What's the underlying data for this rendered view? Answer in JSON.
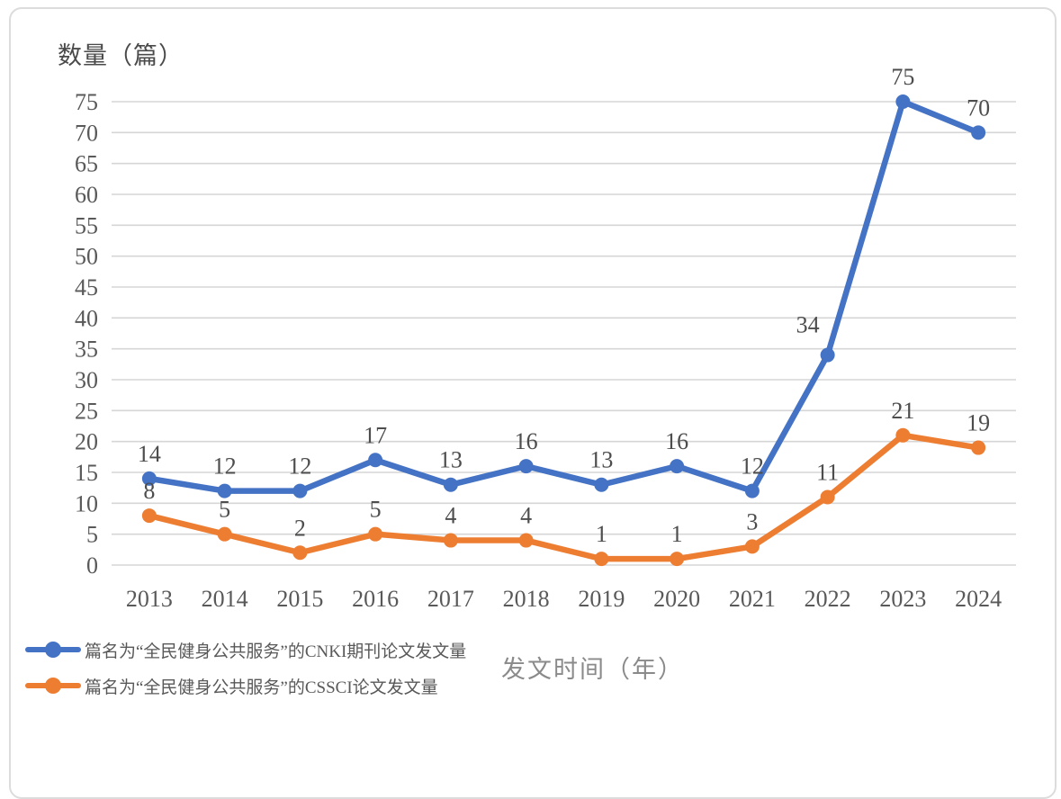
{
  "chart_data": {
    "type": "line",
    "title_y": "数量（篇）",
    "title_x": "发文时间（年）",
    "categories": [
      "2013",
      "2014",
      "2015",
      "2016",
      "2017",
      "2018",
      "2019",
      "2020",
      "2021",
      "2022",
      "2023",
      "2024"
    ],
    "series": [
      {
        "name": "篇名为“全民健身公共服务”的CNKI期刊论文发文量",
        "color": "#4472C4",
        "values": [
          14,
          12,
          12,
          17,
          13,
          16,
          13,
          16,
          12,
          34,
          75,
          70
        ],
        "label_dx": [
          0,
          0,
          0,
          0,
          0,
          0,
          0,
          0,
          0,
          -22,
          0,
          0
        ],
        "label_dy": [
          0,
          0,
          0,
          0,
          0,
          0,
          0,
          0,
          0,
          -6,
          0,
          0
        ]
      },
      {
        "name": "篇名为“全民健身公共服务”的CSSCI论文发文量",
        "color": "#ED7D31",
        "values": [
          8,
          5,
          2,
          5,
          4,
          4,
          1,
          1,
          3,
          11,
          21,
          19
        ],
        "label_dx": [
          0,
          0,
          0,
          0,
          0,
          0,
          0,
          0,
          0,
          0,
          0,
          0
        ],
        "label_dy": [
          0,
          0,
          0,
          0,
          0,
          0,
          0,
          0,
          0,
          0,
          0,
          0
        ]
      }
    ],
    "ylim": [
      0,
      75
    ],
    "ytick_step": 5,
    "grid": true,
    "data_labels": true,
    "legend_position": "bottom-left"
  },
  "colors": {
    "grid": "#d6d6d6",
    "tick_text": "#595959",
    "data_label_text": "#4d4d4d",
    "card_border": "#dcdcdc",
    "background": "#ffffff"
  }
}
